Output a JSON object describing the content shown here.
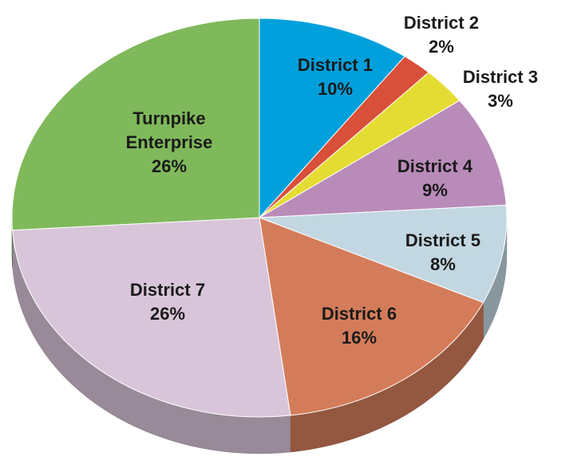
{
  "chart_data": {
    "type": "pie",
    "categories": [
      "District 1",
      "District 2",
      "District 3",
      "District 4",
      "District 5",
      "District 6",
      "District 7",
      "Turnpike Enterprise"
    ],
    "values": [
      10,
      2,
      3,
      9,
      8,
      16,
      26,
      26
    ],
    "value_labels": [
      "10%",
      "2%",
      "3%",
      "9%",
      "8%",
      "16%",
      "26%",
      "26%"
    ],
    "colors": [
      "#00a0dc",
      "#d9503a",
      "#e5dc33",
      "#b98bb9",
      "#c2d7e1",
      "#d47c5a",
      "#d9c5d9",
      "#7fb95b"
    ]
  }
}
